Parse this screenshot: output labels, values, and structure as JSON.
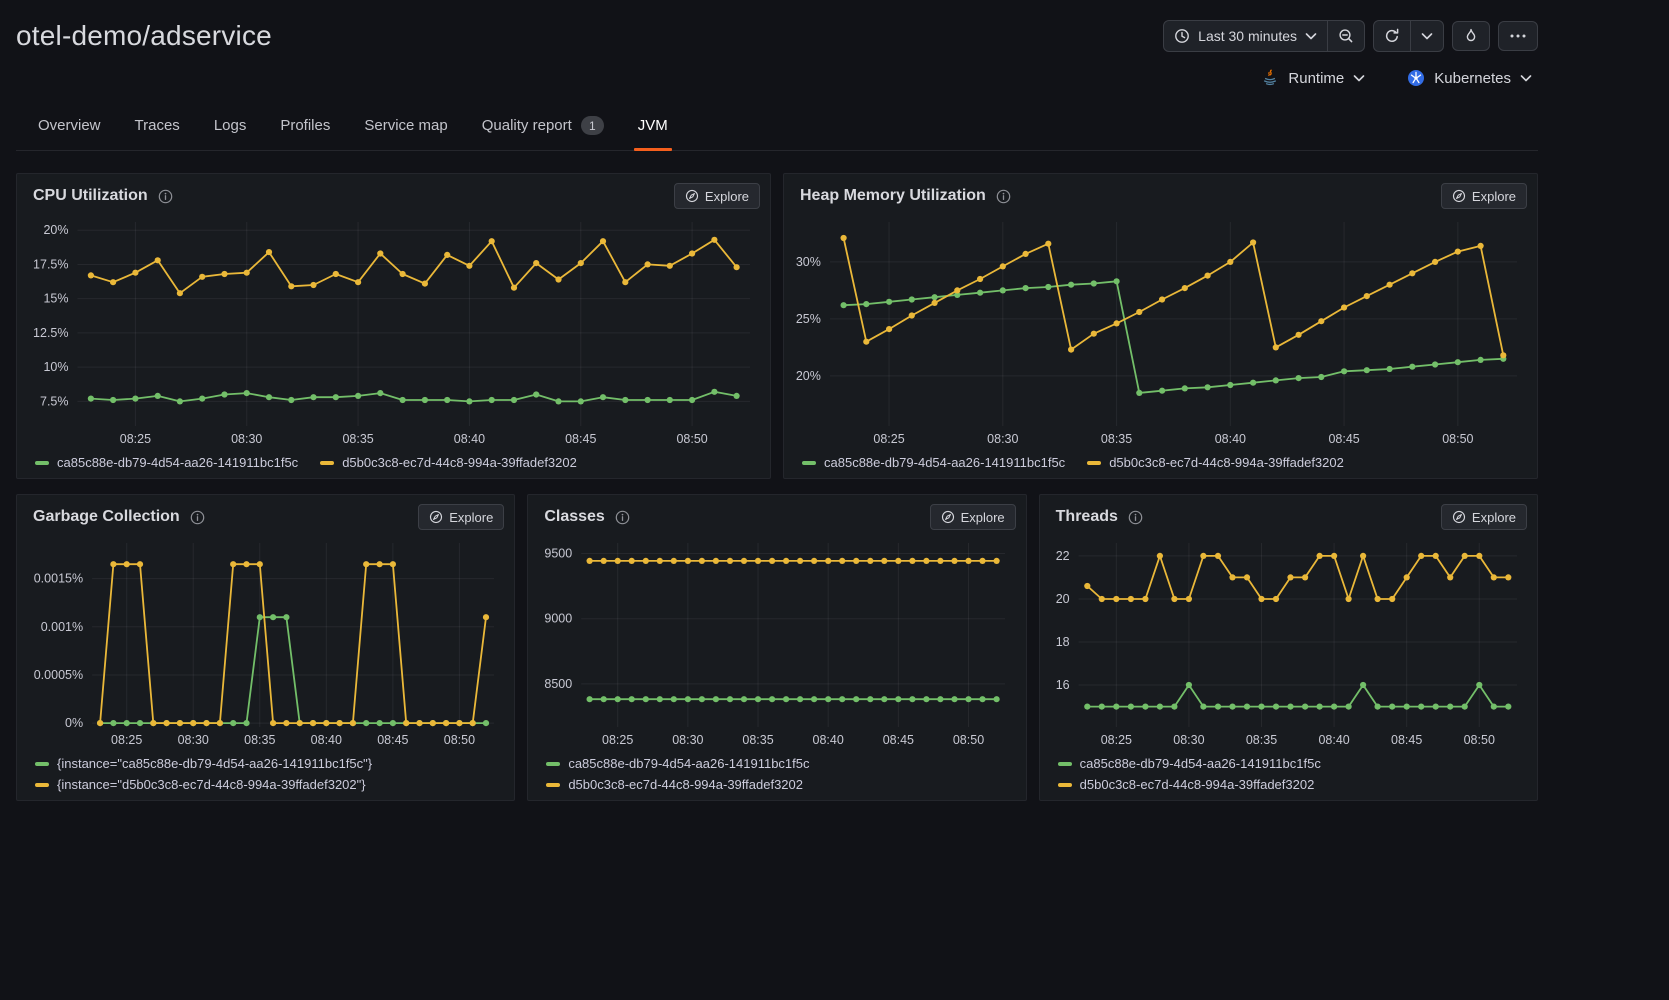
{
  "header": {
    "title": "otel-demo/adservice",
    "time_range": "Last 30 minutes",
    "runtime_label": "Runtime",
    "kubernetes_label": "Kubernetes"
  },
  "icons": {
    "time_picker": "clock-icon",
    "zoom_out": "zoom-out-icon",
    "refresh": "refresh-icon",
    "refresh_interval": "chevron-down-icon",
    "flame": "flame-icon",
    "more": "ellipsis-icon",
    "runtime": "java-icon",
    "kubernetes": "kubernetes-icon",
    "panel_info": "info-icon",
    "explore": "compass-icon"
  },
  "tabs": [
    {
      "label": "Overview",
      "active": false
    },
    {
      "label": "Traces",
      "active": false
    },
    {
      "label": "Logs",
      "active": false
    },
    {
      "label": "Profiles",
      "active": false
    },
    {
      "label": "Service map",
      "active": false
    },
    {
      "label": "Quality report",
      "badge": "1",
      "active": false
    },
    {
      "label": "JVM",
      "active": true
    }
  ],
  "colors": {
    "green": "#73BF69",
    "yellow": "#EAB839",
    "accent_orange": "#F55F1D",
    "panel_bg": "#181B1F",
    "page_bg": "#111217"
  },
  "explore_label": "Explore",
  "chart_data": [
    {
      "id": "cpu-utilization",
      "type": "line",
      "title": "CPU Utilization",
      "span": 3,
      "legend_layout": "row",
      "x_start_min": 23,
      "x_step_min": 1,
      "xlim": [
        22.4,
        52.6
      ],
      "x_ticks": [
        25,
        30,
        35,
        40,
        45,
        50
      ],
      "x_tick_labels": [
        "08:25",
        "08:30",
        "08:35",
        "08:40",
        "08:45",
        "08:50"
      ],
      "ylim": [
        5.7,
        20.6
      ],
      "y_ticks": {
        "values": [
          7.5,
          10,
          12.5,
          15,
          17.5,
          20
        ],
        "labels": [
          "7.5%",
          "10%",
          "12.5%",
          "15%",
          "17.5%",
          "20%"
        ]
      },
      "series": [
        {
          "name": "ca85c88e-db79-4d54-aa26-141911bc1f5c",
          "color_key": "green",
          "values": [
            7.7,
            7.6,
            7.7,
            7.9,
            7.5,
            7.7,
            8.0,
            8.1,
            7.8,
            7.6,
            7.8,
            7.8,
            7.9,
            8.1,
            7.6,
            7.6,
            7.6,
            7.5,
            7.6,
            7.6,
            8.0,
            7.5,
            7.5,
            7.8,
            7.6,
            7.6,
            7.6,
            7.6,
            8.2,
            7.9
          ]
        },
        {
          "name": "d5b0c3c8-ec7d-44c8-994a-39ffadef3202",
          "color_key": "yellow",
          "values": [
            16.7,
            16.2,
            16.9,
            17.8,
            15.4,
            16.6,
            16.8,
            16.9,
            18.4,
            15.9,
            16.0,
            16.8,
            16.2,
            18.3,
            16.8,
            16.1,
            18.2,
            17.4,
            19.2,
            15.8,
            17.6,
            16.4,
            17.6,
            19.2,
            16.2,
            17.5,
            17.4,
            18.3,
            19.3,
            17.3
          ]
        }
      ]
    },
    {
      "id": "heap-memory-utilization",
      "type": "line",
      "title": "Heap Memory Utilization",
      "span": 3,
      "legend_layout": "row",
      "x_start_min": 23,
      "x_step_min": 1,
      "xlim": [
        22.4,
        52.6
      ],
      "x_ticks": [
        25,
        30,
        35,
        40,
        45,
        50
      ],
      "x_tick_labels": [
        "08:25",
        "08:30",
        "08:35",
        "08:40",
        "08:45",
        "08:50"
      ],
      "ylim": [
        15.6,
        33.5
      ],
      "y_ticks": {
        "values": [
          20,
          25,
          30
        ],
        "labels": [
          "20%",
          "25%",
          "30%"
        ]
      },
      "series": [
        {
          "name": "ca85c88e-db79-4d54-aa26-141911bc1f5c",
          "color_key": "green",
          "values": [
            26.2,
            26.3,
            26.5,
            26.7,
            26.9,
            27.1,
            27.3,
            27.5,
            27.7,
            27.8,
            28.0,
            28.1,
            28.3,
            18.5,
            18.7,
            18.9,
            19.0,
            19.2,
            19.4,
            19.6,
            19.8,
            19.9,
            20.4,
            20.5,
            20.6,
            20.8,
            21.0,
            21.2,
            21.4,
            21.5
          ]
        },
        {
          "name": "d5b0c3c8-ec7d-44c8-994a-39ffadef3202",
          "color_key": "yellow",
          "values": [
            32.1,
            23.0,
            24.1,
            25.3,
            26.4,
            27.5,
            28.5,
            29.6,
            30.7,
            31.6,
            22.3,
            23.7,
            24.6,
            25.6,
            26.7,
            27.7,
            28.8,
            30.0,
            31.7,
            22.5,
            23.6,
            24.8,
            26.0,
            27.0,
            28.0,
            29.0,
            30.0,
            30.9,
            31.4,
            21.8
          ]
        }
      ]
    },
    {
      "id": "garbage-collection",
      "type": "line",
      "title": "Garbage Collection",
      "span": 2,
      "legend_layout": "stack",
      "x_start_min": 23,
      "x_step_min": 1,
      "xlim": [
        22.4,
        52.6
      ],
      "x_ticks": [
        25,
        30,
        35,
        40,
        45,
        50
      ],
      "x_tick_labels": [
        "08:25",
        "08:30",
        "08:35",
        "08:40",
        "08:45",
        "08:50"
      ],
      "ylim": [
        -4e-05,
        0.00187
      ],
      "y_ticks": {
        "values": [
          0,
          0.0005,
          0.001,
          0.0015
        ],
        "labels": [
          "0%",
          "0.0005%",
          "0.001%",
          "0.0015%"
        ]
      },
      "series": [
        {
          "name": "{instance=\"ca85c88e-db79-4d54-aa26-141911bc1f5c\"}",
          "color_key": "green",
          "values": [
            0,
            0,
            0,
            0,
            0,
            0,
            0,
            0,
            0,
            0,
            0,
            0,
            0.0011,
            0.0011,
            0.0011,
            0,
            0,
            0,
            0,
            0,
            0,
            0,
            0,
            0,
            0,
            0,
            0,
            0,
            0,
            0
          ]
        },
        {
          "name": "{instance=\"d5b0c3c8-ec7d-44c8-994a-39ffadef3202\"}",
          "color_key": "yellow",
          "values": [
            0,
            0.00165,
            0.00165,
            0.00165,
            0,
            0,
            0,
            0,
            0,
            0,
            0.00165,
            0.00165,
            0.00165,
            0,
            0,
            0,
            0,
            0,
            0,
            0,
            0.00165,
            0.00165,
            0.00165,
            0,
            0,
            0,
            0,
            0,
            0,
            0.0011
          ]
        }
      ]
    },
    {
      "id": "classes",
      "type": "line",
      "title": "Classes",
      "span": 2,
      "legend_layout": "stack",
      "x_start_min": 23,
      "x_step_min": 1,
      "xlim": [
        22.4,
        52.6
      ],
      "x_ticks": [
        25,
        30,
        35,
        40,
        45,
        50
      ],
      "x_tick_labels": [
        "08:25",
        "08:30",
        "08:35",
        "08:40",
        "08:45",
        "08:50"
      ],
      "ylim": [
        8170,
        9580
      ],
      "y_ticks": {
        "values": [
          8500,
          9000,
          9500
        ],
        "labels": [
          "8500",
          "9000",
          "9500"
        ]
      },
      "series": [
        {
          "name": "ca85c88e-db79-4d54-aa26-141911bc1f5c",
          "color_key": "green",
          "values": [
            8383,
            8383,
            8383,
            8383,
            8383,
            8383,
            8383,
            8383,
            8383,
            8383,
            8383,
            8383,
            8383,
            8383,
            8383,
            8383,
            8383,
            8383,
            8383,
            8383,
            8383,
            8383,
            8383,
            8383,
            8383,
            8383,
            8383,
            8383,
            8383,
            8383
          ]
        },
        {
          "name": "d5b0c3c8-ec7d-44c8-994a-39ffadef3202",
          "color_key": "yellow",
          "values": [
            9443,
            9443,
            9443,
            9443,
            9443,
            9443,
            9443,
            9443,
            9443,
            9443,
            9443,
            9443,
            9443,
            9443,
            9443,
            9443,
            9443,
            9443,
            9443,
            9443,
            9443,
            9443,
            9443,
            9443,
            9443,
            9443,
            9443,
            9443,
            9443,
            9443
          ]
        }
      ]
    },
    {
      "id": "threads",
      "type": "line",
      "title": "Threads",
      "span": 2,
      "legend_layout": "stack",
      "x_start_min": 23,
      "x_step_min": 1,
      "xlim": [
        22.4,
        52.6
      ],
      "x_ticks": [
        25,
        30,
        35,
        40,
        45,
        50
      ],
      "x_tick_labels": [
        "08:25",
        "08:30",
        "08:35",
        "08:40",
        "08:45",
        "08:50"
      ],
      "ylim": [
        14.05,
        22.6
      ],
      "y_ticks": {
        "values": [
          16,
          18,
          20,
          22
        ],
        "labels": [
          "16",
          "18",
          "20",
          "22"
        ]
      },
      "series": [
        {
          "name": "ca85c88e-db79-4d54-aa26-141911bc1f5c",
          "color_key": "green",
          "values": [
            15,
            15,
            15,
            15,
            15,
            15,
            15,
            16,
            15,
            15,
            15,
            15,
            15,
            15,
            15,
            15,
            15,
            15,
            15,
            16,
            15,
            15,
            15,
            15,
            15,
            15,
            15,
            16,
            15,
            15
          ]
        },
        {
          "name": "d5b0c3c8-ec7d-44c8-994a-39ffadef3202",
          "color_key": "yellow",
          "values": [
            20.6,
            20,
            20,
            20,
            20,
            22,
            20,
            20,
            22,
            22,
            21,
            21,
            20,
            20,
            21,
            21,
            22,
            22,
            20,
            22,
            20,
            20,
            21,
            22,
            22,
            21,
            22,
            22,
            21,
            21
          ]
        }
      ]
    }
  ]
}
